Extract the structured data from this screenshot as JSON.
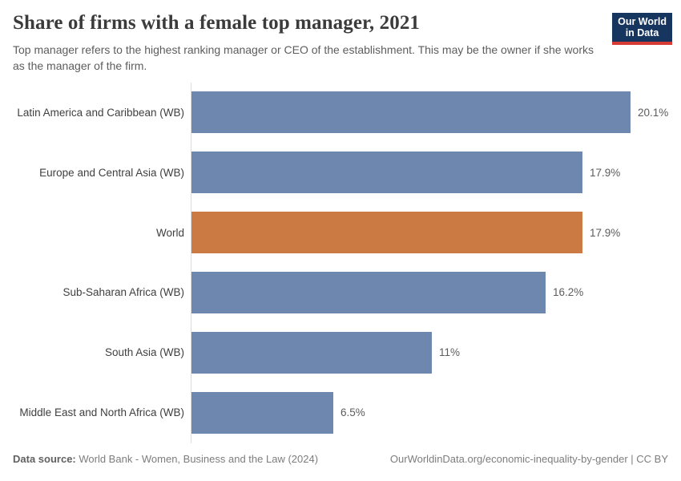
{
  "header": {
    "title": "Share of firms with a female top manager, 2021",
    "subtitle": "Top manager refers to the highest ranking manager or CEO of the establishment. This may be the owner if she works as the manager of the firm.",
    "logo": {
      "line1": "Our World",
      "line2": "in Data"
    }
  },
  "chart_data": {
    "type": "bar",
    "orientation": "horizontal",
    "title": "Share of firms with a female top manager, 2021",
    "categories": [
      "Latin America and Caribbean (WB)",
      "Europe and Central Asia (WB)",
      "World",
      "Sub-Saharan Africa (WB)",
      "South Asia (WB)",
      "Middle East and North Africa (WB)"
    ],
    "values": [
      20.1,
      17.9,
      17.9,
      16.2,
      11,
      6.5
    ],
    "value_labels": [
      "20.1%",
      "17.9%",
      "17.9%",
      "16.2%",
      "11%",
      "6.5%"
    ],
    "highlight_category": "World",
    "bar_color": "#6e87af",
    "highlight_color": "#cb7a43",
    "axis_line_color": "#dcdcdc",
    "xlim": [
      0,
      20.1
    ],
    "grid": false,
    "legend": false,
    "value_labels_position": "right-of-bar"
  },
  "footer": {
    "datasource_label": "Data source:",
    "datasource_text": " World Bank - Women, Business and the Law (2024)",
    "credit": "OurWorldinData.org/economic-inequality-by-gender | CC BY"
  }
}
